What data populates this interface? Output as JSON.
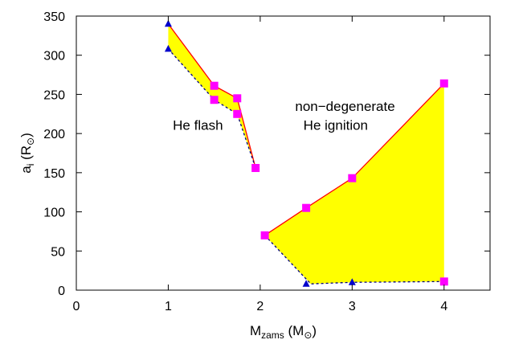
{
  "chart_data": {
    "type": "line",
    "xlabel": {
      "main": "M",
      "sub": "zams",
      "unit_open": " (M",
      "unit_sub": "⊙",
      "unit_close": ")"
    },
    "ylabel": {
      "main": "a",
      "sub": "i",
      "unit_open": " (R",
      "unit_sub": "⊙",
      "unit_close": ")"
    },
    "xlim": [
      0,
      4.5
    ],
    "ylim": [
      0,
      350
    ],
    "x_ticks": [
      0,
      1,
      2,
      3,
      4
    ],
    "y_ticks": [
      0,
      50,
      100,
      150,
      200,
      250,
      300,
      350
    ],
    "grid": false,
    "annotations": [
      {
        "text": "He flash",
        "x": 1.05,
        "y": 205
      },
      {
        "text": "non−degenerate",
        "x": 2.38,
        "y": 229
      },
      {
        "text": "He ignition",
        "x": 2.47,
        "y": 205
      }
    ],
    "regions": [
      {
        "name_label": "",
        "upper_series": {
          "color": "#ff0000",
          "marker": "square",
          "marker_color": "#ff00ff",
          "x": [
            1.0,
            1.5,
            1.75,
            1.95
          ],
          "y": [
            340,
            261,
            245,
            156
          ]
        },
        "lower_series": {
          "color": "#000080",
          "marker": "triangle",
          "marker_color": "#0000cc",
          "x": [
            1.0,
            1.5,
            1.75,
            1.95
          ],
          "y": [
            308,
            243,
            225,
            156
          ]
        },
        "upper_markers": [
          [
            1.5,
            261
          ],
          [
            1.75,
            245
          ],
          [
            1.95,
            156
          ]
        ],
        "lower_markers": [
          [
            1.0,
            308
          ],
          [
            1.0,
            340
          ]
        ],
        "lower_square_markers": [
          [
            1.5,
            243
          ],
          [
            1.75,
            225
          ]
        ]
      },
      {
        "name_label": "",
        "upper_series": {
          "color": "#ff0000",
          "marker": "square",
          "marker_color": "#ff00ff",
          "x": [
            2.05,
            2.5,
            3.0,
            4.0
          ],
          "y": [
            70,
            105,
            143,
            264
          ]
        },
        "lower_series": {
          "color": "#000080",
          "marker": "triangle",
          "marker_color": "#0000cc",
          "x": [
            2.05,
            2.55,
            3.0,
            4.0
          ],
          "y": [
            70,
            8,
            10,
            11
          ]
        },
        "upper_markers": [
          [
            2.05,
            70
          ],
          [
            2.5,
            105
          ],
          [
            3.0,
            143
          ],
          [
            4.0,
            264
          ]
        ],
        "lower_markers": [
          [
            2.5,
            8
          ],
          [
            3.0,
            10
          ]
        ],
        "lower_square_markers": [
          [
            4.0,
            11
          ]
        ]
      }
    ],
    "fill_color": "#ffff00"
  }
}
